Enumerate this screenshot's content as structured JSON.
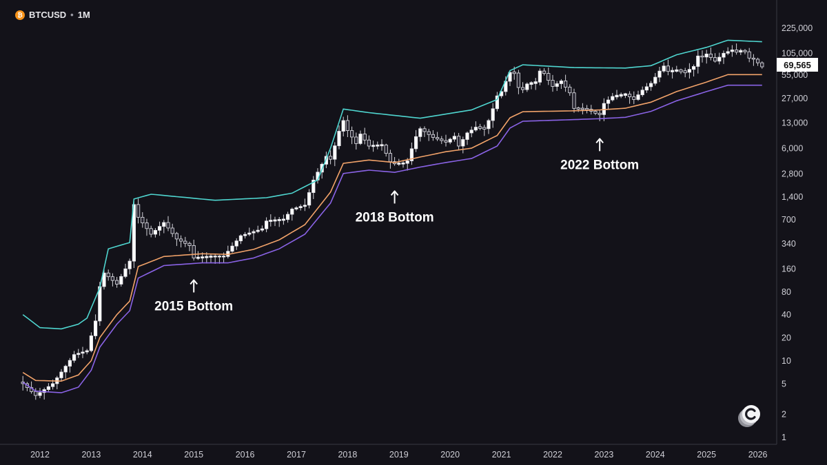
{
  "header": {
    "symbol": "BTCUSD",
    "separator": "•",
    "interval": "1M",
    "coin_icon": "bitcoin-icon"
  },
  "price_badge": {
    "value": "69,565"
  },
  "logo": {
    "icon": "c-logo-icon"
  },
  "colors": {
    "background": "#131219",
    "upper_band": "#4fd6d0",
    "mid_band": "#f2a36a",
    "lower_band": "#8a63e6",
    "candle_up": "#ffffff",
    "candle_down": "#2a2834",
    "axis_text": "#cfcfd6"
  },
  "chart_data": {
    "type": "candlestick",
    "scale": "log",
    "timeframe": "1M",
    "x_ticks": [
      "2012",
      "2013",
      "2014",
      "2015",
      "2016",
      "2017",
      "2018",
      "2019",
      "2020",
      "2021",
      "2022",
      "2023",
      "2024",
      "2025",
      "2026"
    ],
    "y_ticks": [
      {
        "label": "225,000",
        "value": 225000
      },
      {
        "label": "105,000",
        "value": 105000
      },
      {
        "label": "55,000",
        "value": 55000
      },
      {
        "label": "27,000",
        "value": 27000
      },
      {
        "label": "13,000",
        "value": 13000
      },
      {
        "label": "6,000",
        "value": 6000
      },
      {
        "label": "2,800",
        "value": 2800
      },
      {
        "label": "1,400",
        "value": 1400
      },
      {
        "label": "700",
        "value": 700
      },
      {
        "label": "340",
        "value": 340
      },
      {
        "label": "160",
        "value": 160
      },
      {
        "label": "80",
        "value": 80
      },
      {
        "label": "40",
        "value": 40
      },
      {
        "label": "20",
        "value": 20
      },
      {
        "label": "10",
        "value": 10
      },
      {
        "label": "5",
        "value": 5
      },
      {
        "label": "2",
        "value": 2
      },
      {
        "label": "1",
        "value": 1
      }
    ],
    "price_anchors": [
      [
        "2011-09",
        5.0
      ],
      [
        "2011-12",
        3.5
      ],
      [
        "2012-04",
        5.0
      ],
      [
        "2012-09",
        12
      ],
      [
        "2012-12",
        13.5
      ],
      [
        "2013-02",
        33
      ],
      [
        "2013-03",
        93
      ],
      [
        "2013-04",
        140
      ],
      [
        "2013-07",
        100
      ],
      [
        "2013-10",
        200
      ],
      [
        "2013-11",
        1100
      ],
      [
        "2013-12",
        750
      ],
      [
        "2014-03",
        450
      ],
      [
        "2014-06",
        640
      ],
      [
        "2014-09",
        390
      ],
      [
        "2014-12",
        320
      ],
      [
        "2015-01",
        220
      ],
      [
        "2015-05",
        230
      ],
      [
        "2015-08",
        230
      ],
      [
        "2015-10",
        315
      ],
      [
        "2015-12",
        430
      ],
      [
        "2016-05",
        530
      ],
      [
        "2016-06",
        670
      ],
      [
        "2016-10",
        700
      ],
      [
        "2016-12",
        960
      ],
      [
        "2017-03",
        1080
      ],
      [
        "2017-05",
        2300
      ],
      [
        "2017-08",
        4700
      ],
      [
        "2017-09",
        4300
      ],
      [
        "2017-10",
        6450
      ],
      [
        "2017-11",
        10000
      ],
      [
        "2017-12",
        13800
      ],
      [
        "2018-01",
        10200
      ],
      [
        "2018-03",
        6900
      ],
      [
        "2018-04",
        9200
      ],
      [
        "2018-06",
        6400
      ],
      [
        "2018-09",
        6600
      ],
      [
        "2018-11",
        4000
      ],
      [
        "2018-12",
        3750
      ],
      [
        "2019-02",
        3800
      ],
      [
        "2019-03",
        4100
      ],
      [
        "2019-05",
        8500
      ],
      [
        "2019-06",
        10800
      ],
      [
        "2019-09",
        8300
      ],
      [
        "2019-12",
        7200
      ],
      [
        "2020-02",
        8600
      ],
      [
        "2020-03",
        6400
      ],
      [
        "2020-05",
        9500
      ],
      [
        "2020-07",
        11300
      ],
      [
        "2020-09",
        10800
      ],
      [
        "2020-10",
        13800
      ],
      [
        "2020-11",
        19700
      ],
      [
        "2020-12",
        29000
      ],
      [
        "2021-01",
        33000
      ],
      [
        "2021-02",
        45000
      ],
      [
        "2021-03",
        58800
      ],
      [
        "2021-04",
        57700
      ],
      [
        "2021-05",
        37300
      ],
      [
        "2021-06",
        35000
      ],
      [
        "2021-07",
        41500
      ],
      [
        "2021-09",
        43800
      ],
      [
        "2021-10",
        61300
      ],
      [
        "2021-11",
        57000
      ],
      [
        "2021-12",
        46300
      ],
      [
        "2022-01",
        38500
      ],
      [
        "2022-03",
        45500
      ],
      [
        "2022-04",
        37700
      ],
      [
        "2022-05",
        31800
      ],
      [
        "2022-06",
        19900
      ],
      [
        "2022-09",
        19400
      ],
      [
        "2022-11",
        17200
      ],
      [
        "2022-12",
        16500
      ],
      [
        "2023-01",
        23100
      ],
      [
        "2023-03",
        28500
      ],
      [
        "2023-06",
        30500
      ],
      [
        "2023-08",
        26000
      ],
      [
        "2023-10",
        34500
      ],
      [
        "2023-12",
        42300
      ],
      [
        "2024-02",
        61200
      ],
      [
        "2024-03",
        71300
      ],
      [
        "2024-04",
        60600
      ],
      [
        "2024-06",
        62700
      ],
      [
        "2024-08",
        59000
      ],
      [
        "2024-10",
        70300
      ],
      [
        "2024-11",
        96400
      ],
      [
        "2024-12",
        93400
      ],
      [
        "2025-01",
        102400
      ],
      [
        "2025-03",
        82500
      ],
      [
        "2025-05",
        104600
      ],
      [
        "2025-07",
        115800
      ],
      [
        "2025-08",
        108200
      ],
      [
        "2025-09",
        114000
      ],
      [
        "2025-10",
        109500
      ],
      [
        "2025-11",
        90500
      ],
      [
        "2025-12",
        87500
      ],
      [
        "2026-01",
        78500
      ],
      [
        "2026-02",
        69565
      ]
    ],
    "bands": [
      {
        "name": "",
        "role": "upper",
        "color": "#4fd6d0",
        "anchors": [
          [
            "2011-09",
            40
          ],
          [
            "2012-01",
            27
          ],
          [
            "2012-06",
            26
          ],
          [
            "2012-10",
            30
          ],
          [
            "2012-12",
            36
          ],
          [
            "2013-03",
            90
          ],
          [
            "2013-05",
            290
          ],
          [
            "2013-10",
            350
          ],
          [
            "2013-11",
            1300
          ],
          [
            "2014-03",
            1500
          ],
          [
            "2015-06",
            1250
          ],
          [
            "2016-06",
            1350
          ],
          [
            "2016-12",
            1550
          ],
          [
            "2017-06",
            2300
          ],
          [
            "2017-09",
            6000
          ],
          [
            "2017-12",
            19500
          ],
          [
            "2018-06",
            17500
          ],
          [
            "2019-06",
            14800
          ],
          [
            "2020-06",
            19000
          ],
          [
            "2020-12",
            26000
          ],
          [
            "2021-03",
            62000
          ],
          [
            "2021-06",
            74000
          ],
          [
            "2022-06",
            68000
          ],
          [
            "2023-06",
            67000
          ],
          [
            "2023-12",
            72000
          ],
          [
            "2024-06",
            100000
          ],
          [
            "2025-01",
            125000
          ],
          [
            "2025-06",
            155000
          ],
          [
            "2026-02",
            148000
          ]
        ]
      },
      {
        "name": "",
        "role": "mid",
        "color": "#f2a36a",
        "anchors": [
          [
            "2011-09",
            7
          ],
          [
            "2011-12",
            5.5
          ],
          [
            "2012-06",
            5.4
          ],
          [
            "2012-10",
            6.5
          ],
          [
            "2013-01",
            10
          ],
          [
            "2013-03",
            20
          ],
          [
            "2013-07",
            40
          ],
          [
            "2013-10",
            60
          ],
          [
            "2013-12",
            170
          ],
          [
            "2014-06",
            230
          ],
          [
            "2015-03",
            250
          ],
          [
            "2015-09",
            245
          ],
          [
            "2016-03",
            285
          ],
          [
            "2016-09",
            380
          ],
          [
            "2017-03",
            600
          ],
          [
            "2017-09",
            1600
          ],
          [
            "2017-12",
            3800
          ],
          [
            "2018-06",
            4200
          ],
          [
            "2018-12",
            3900
          ],
          [
            "2019-06",
            4600
          ],
          [
            "2019-12",
            5400
          ],
          [
            "2020-06",
            6000
          ],
          [
            "2020-12",
            8800
          ],
          [
            "2021-03",
            15000
          ],
          [
            "2021-06",
            18000
          ],
          [
            "2022-06",
            18500
          ],
          [
            "2022-12",
            19000
          ],
          [
            "2023-06",
            20000
          ],
          [
            "2023-12",
            24000
          ],
          [
            "2024-06",
            33000
          ],
          [
            "2025-01",
            44000
          ],
          [
            "2025-06",
            55000
          ],
          [
            "2026-02",
            55000
          ]
        ]
      },
      {
        "name": "",
        "role": "lower",
        "color": "#8a63e6",
        "anchors": [
          [
            "2011-09",
            5.2
          ],
          [
            "2011-12",
            4.0
          ],
          [
            "2012-06",
            3.8
          ],
          [
            "2012-10",
            4.5
          ],
          [
            "2013-01",
            7.5
          ],
          [
            "2013-03",
            15
          ],
          [
            "2013-07",
            30
          ],
          [
            "2013-10",
            45
          ],
          [
            "2013-12",
            120
          ],
          [
            "2014-06",
            175
          ],
          [
            "2015-03",
            190
          ],
          [
            "2015-09",
            190
          ],
          [
            "2016-03",
            220
          ],
          [
            "2016-09",
            290
          ],
          [
            "2017-03",
            450
          ],
          [
            "2017-09",
            1150
          ],
          [
            "2017-12",
            2800
          ],
          [
            "2018-06",
            3100
          ],
          [
            "2018-12",
            2900
          ],
          [
            "2019-06",
            3400
          ],
          [
            "2019-12",
            3900
          ],
          [
            "2020-06",
            4400
          ],
          [
            "2020-12",
            6400
          ],
          [
            "2021-03",
            11000
          ],
          [
            "2021-06",
            13500
          ],
          [
            "2022-06",
            14200
          ],
          [
            "2022-12",
            14600
          ],
          [
            "2023-06",
            15200
          ],
          [
            "2023-12",
            18200
          ],
          [
            "2024-06",
            25000
          ],
          [
            "2025-01",
            33000
          ],
          [
            "2025-06",
            40000
          ],
          [
            "2026-02",
            40000
          ]
        ]
      }
    ],
    "annotations": [
      {
        "label": "2015 Bottom",
        "date": "2015-01",
        "price": 220
      },
      {
        "label": "2018 Bottom",
        "date": "2018-12",
        "price": 3200
      },
      {
        "label": "2022 Bottom",
        "date": "2022-12",
        "price": 15500
      }
    ],
    "last_price": 69565
  }
}
